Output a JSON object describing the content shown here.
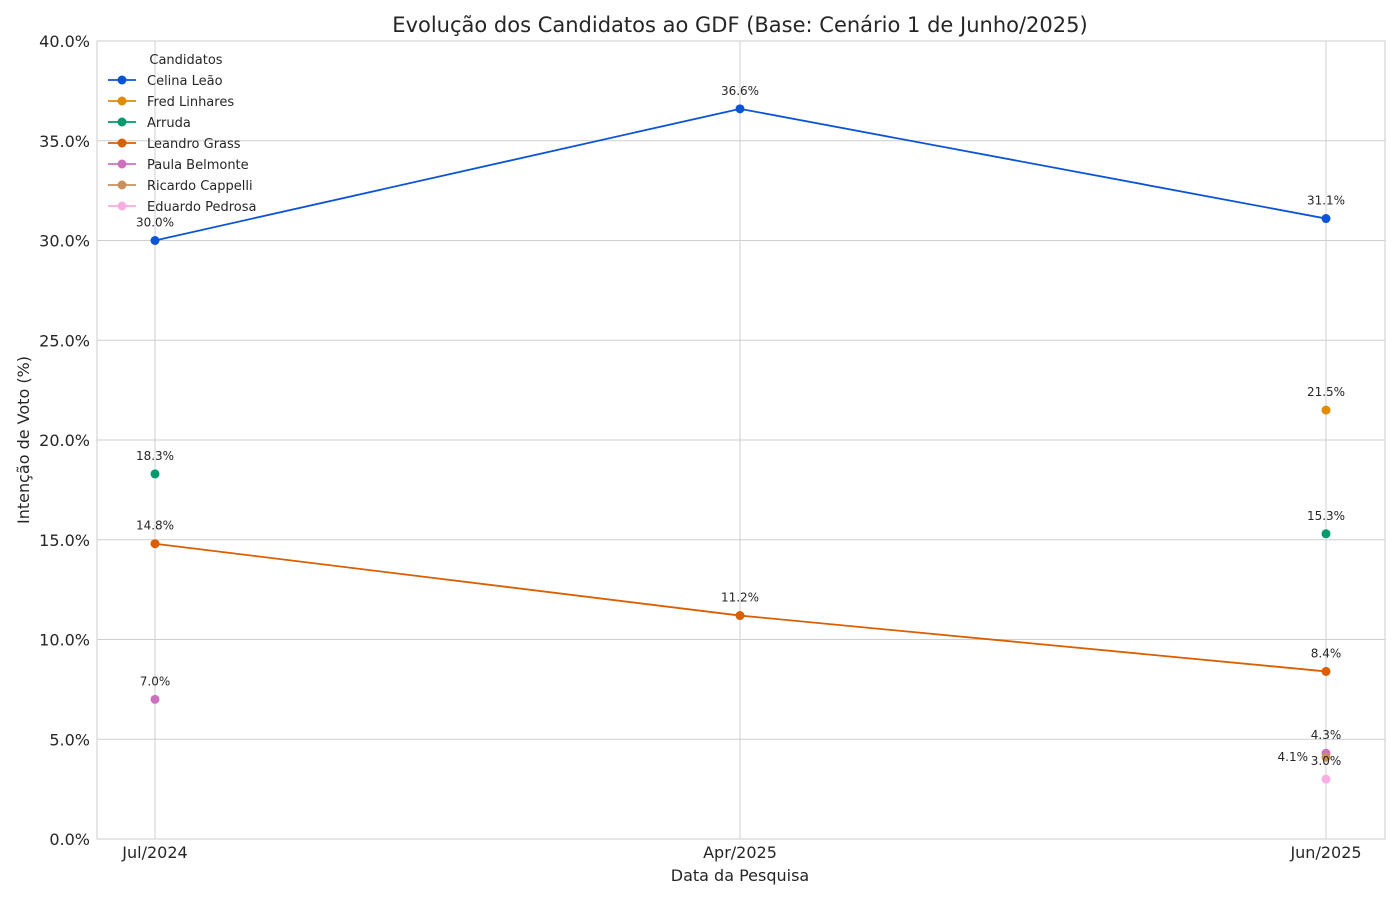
{
  "chart_data": {
    "type": "line",
    "title": "Evolução dos Candidatos ao GDF (Base: Cenário 1 de Junho/2025)",
    "xlabel": "Data da Pesquisa",
    "ylabel": "Intenção de Voto (%)",
    "categories": [
      "Jul/2024",
      "Apr/2025",
      "Jun/2025"
    ],
    "ylim": [
      0,
      40
    ],
    "yticks": [
      0,
      5,
      10,
      15,
      20,
      25,
      30,
      35,
      40
    ],
    "ytick_labels": [
      "0.0%",
      "5.0%",
      "10.0%",
      "15.0%",
      "20.0%",
      "25.0%",
      "30.0%",
      "35.0%",
      "40.0%"
    ],
    "grid": true,
    "legend": {
      "title": "Candidatos",
      "placement": "top-left"
    },
    "series": [
      {
        "name": "Celina Leão",
        "color": "#0b54d6",
        "values": [
          30.0,
          36.6,
          31.1
        ],
        "labels": [
          "30.0%",
          "36.6%",
          "31.1%"
        ]
      },
      {
        "name": "Fred Linhares",
        "color": "#e08c00",
        "values": [
          null,
          null,
          21.5
        ],
        "labels": [
          null,
          null,
          "21.5%"
        ]
      },
      {
        "name": "Arruda",
        "color": "#009a6e",
        "values": [
          18.3,
          null,
          15.3
        ],
        "labels": [
          "18.3%",
          null,
          "15.3%"
        ]
      },
      {
        "name": "Leandro Grass",
        "color": "#d95f02",
        "values": [
          14.8,
          11.2,
          8.4
        ],
        "labels": [
          "14.8%",
          "11.2%",
          "8.4%"
        ]
      },
      {
        "name": "Paula Belmonte",
        "color": "#cc72bc",
        "values": [
          7.0,
          null,
          4.3
        ],
        "labels": [
          "7.0%",
          null,
          "4.3%"
        ]
      },
      {
        "name": "Ricardo Cappelli",
        "color": "#c9915e",
        "values": [
          null,
          null,
          4.1
        ],
        "labels": [
          null,
          null,
          "4.1%"
        ]
      },
      {
        "name": "Eduardo Pedrosa",
        "color": "#f8aee0",
        "values": [
          null,
          null,
          3.0
        ],
        "labels": [
          null,
          null,
          "3.0%"
        ]
      }
    ]
  }
}
